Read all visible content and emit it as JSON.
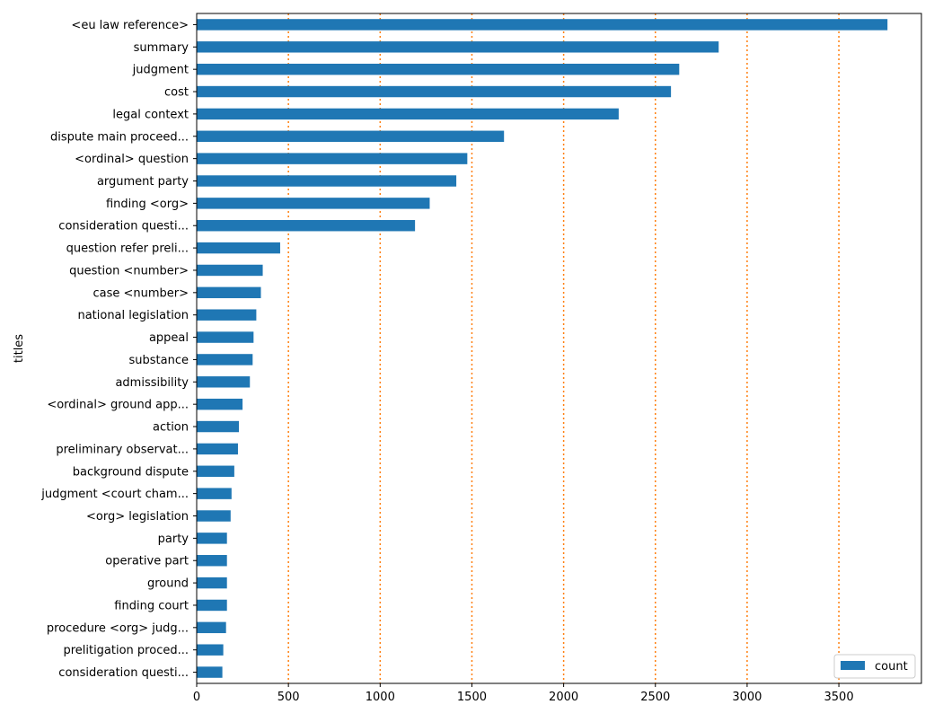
{
  "chart_data": {
    "type": "bar",
    "orientation": "horizontal",
    "categories": [
      "<eu law reference>",
      "summary",
      "judgment",
      "cost",
      "legal context",
      "dispute main proceed...",
      "<ordinal> question",
      "argument party",
      "finding <org>",
      "consideration questi...",
      "question refer preli...",
      "question <number>",
      "case <number>",
      "national legislation",
      "appeal",
      "substance",
      "admissibility",
      "<ordinal> ground app...",
      "action",
      "preliminary observat...",
      "background dispute",
      "judgment <court cham...",
      "<org> legislation",
      "party",
      "operative part",
      "ground",
      "finding court",
      "procedure <org> judg...",
      "prelitigation proced...",
      "consideration questi..."
    ],
    "series": [
      {
        "name": "count",
        "color": "#1f77b4",
        "values": [
          3765,
          2845,
          2630,
          2585,
          2300,
          1675,
          1475,
          1415,
          1270,
          1190,
          455,
          360,
          350,
          325,
          310,
          305,
          290,
          250,
          230,
          225,
          205,
          190,
          185,
          165,
          165,
          165,
          165,
          160,
          145,
          140
        ]
      }
    ],
    "xlabel": "",
    "ylabel": "titles",
    "xlim": [
      0,
      3950
    ],
    "xticks": [
      0,
      500,
      1000,
      1500,
      2000,
      2500,
      3000,
      3500
    ],
    "grid": {
      "axis": "x",
      "style": "dotted",
      "color": "#ff7f0e"
    },
    "legend": {
      "position": "lower-right",
      "entries": [
        "count"
      ]
    }
  }
}
